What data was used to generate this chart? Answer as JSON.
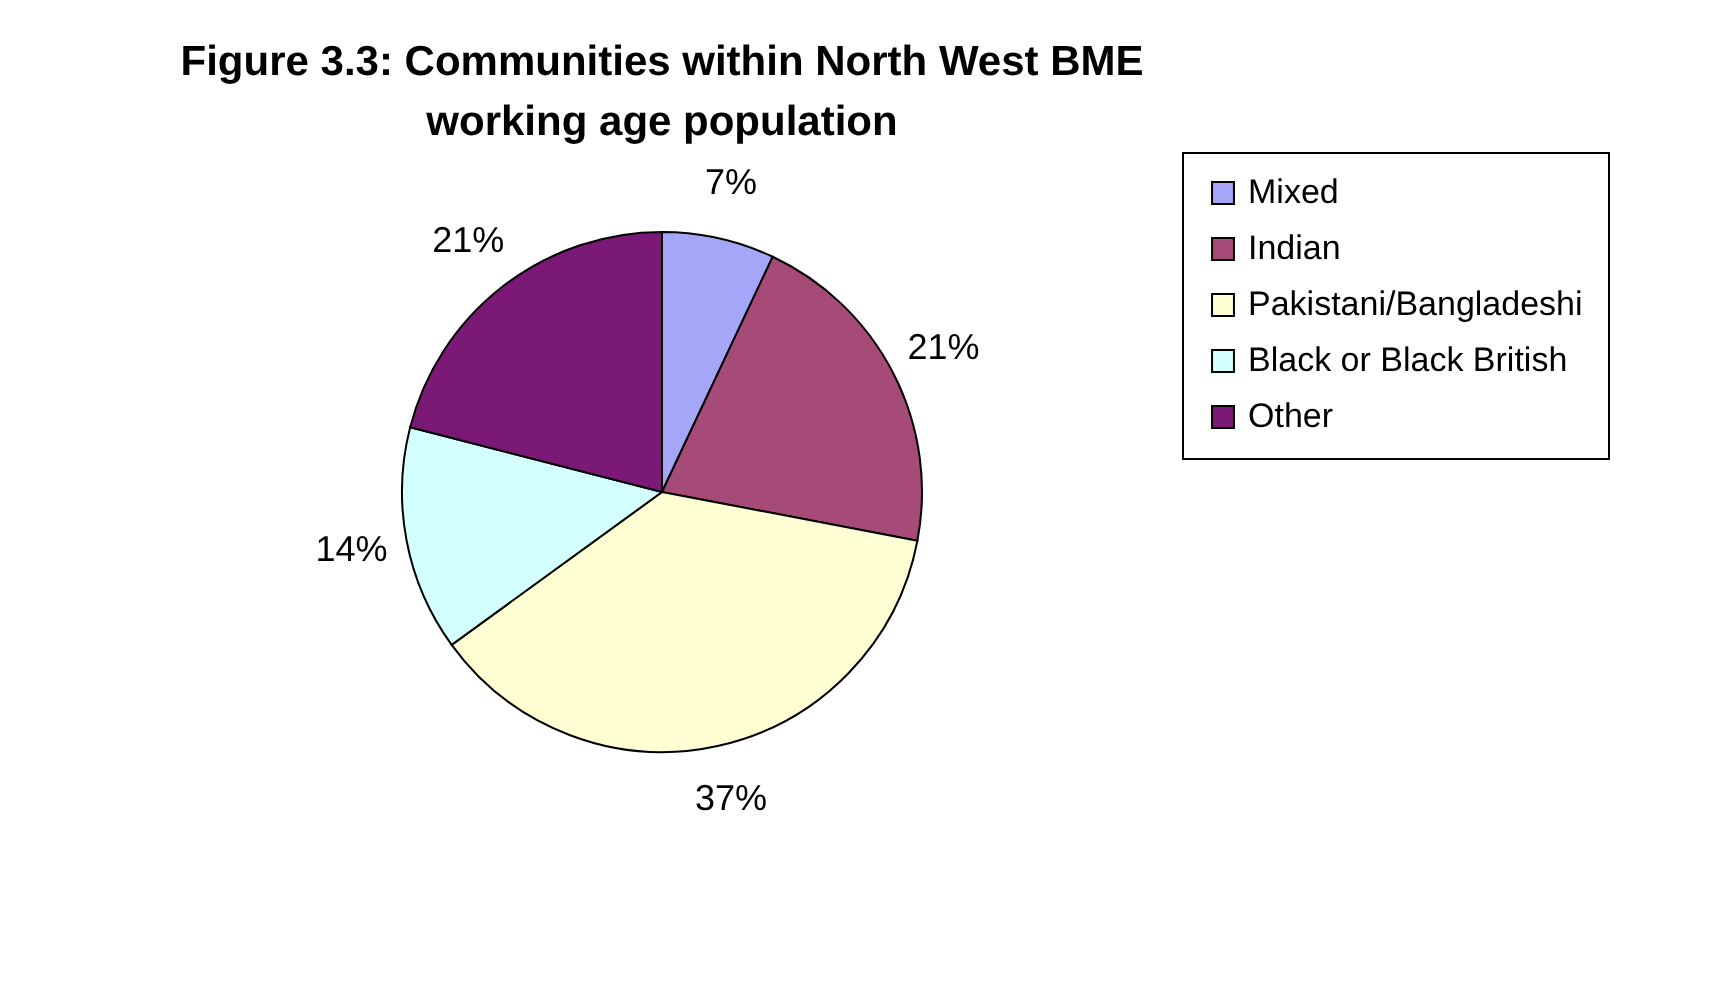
{
  "chart_data": {
    "type": "pie",
    "title": "Figure 3.3: Communities within North West BME working age population",
    "categories": [
      "Mixed",
      "Indian",
      "Pakistani/Bangladeshi",
      "Black or Black British",
      "Other"
    ],
    "values": [
      7,
      21,
      37,
      14,
      21
    ],
    "value_labels": [
      "7%",
      "21%",
      "37%",
      "14%",
      "21%"
    ],
    "colors": [
      "#a6a6f8",
      "#a64a78",
      "#ffffd3",
      "#d3ffff",
      "#7a1a76"
    ],
    "legend": "right"
  }
}
